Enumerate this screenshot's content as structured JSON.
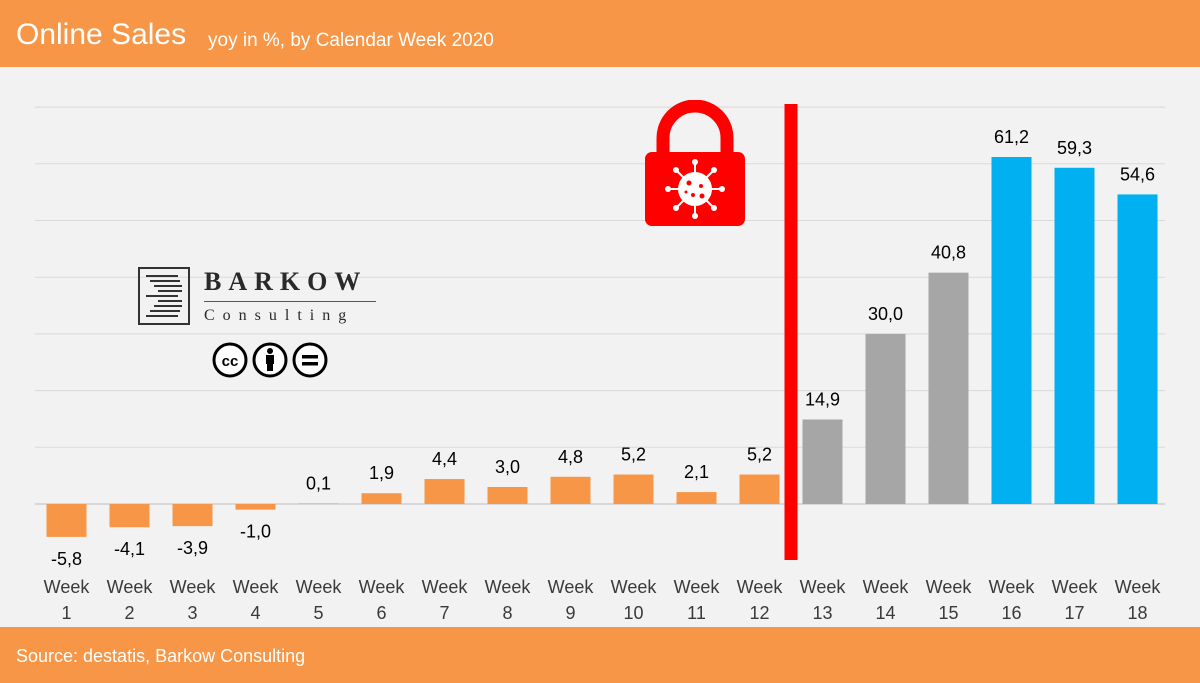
{
  "header": {
    "title": "Online Sales",
    "subtitle": "yoy in %, by Calendar Week 2020"
  },
  "footer": {
    "source": "Source: destatis, Barkow Consulting"
  },
  "logo": {
    "name": "BARKOW",
    "sub": "Consulting",
    "license_icon": "cc-by-nd-icon"
  },
  "colors": {
    "header_bg": "#f79646",
    "bar_orange": "#f79646",
    "bar_grey": "#a6a6a6",
    "bar_blue": "#00b0f0",
    "lockdown_line": "#ff0000",
    "lock_icon": "#ff0000"
  },
  "chart_data": {
    "type": "bar",
    "title": "Online Sales",
    "subtitle": "yoy in %, by Calendar Week 2020",
    "categories": [
      "Week 1",
      "Week 2",
      "Week 3",
      "Week 4",
      "Week 5",
      "Week 6",
      "Week 7",
      "Week 8",
      "Week 9",
      "Week 10",
      "Week 11",
      "Week 12",
      "Week 13",
      "Week 14",
      "Week 15",
      "Week 16",
      "Week 17",
      "Week 18"
    ],
    "values": [
      -5.8,
      -4.1,
      -3.9,
      -1.0,
      0.1,
      1.9,
      4.4,
      3.0,
      4.8,
      5.2,
      2.1,
      5.2,
      14.9,
      30.0,
      40.8,
      61.2,
      59.3,
      54.6
    ],
    "value_labels": [
      "-5,8",
      "-4,1",
      "-3,9",
      "-1,0",
      "0,1",
      "1,9",
      "4,4",
      "3,0",
      "4,8",
      "5,2",
      "2,1",
      "5,2",
      "14,9",
      "30,0",
      "40,8",
      "61,2",
      "59,3",
      "54,6"
    ],
    "bar_colors": [
      "#f79646",
      "#f79646",
      "#f79646",
      "#f79646",
      "#f79646",
      "#f79646",
      "#f79646",
      "#f79646",
      "#f79646",
      "#f79646",
      "#f79646",
      "#f79646",
      "#a6a6a6",
      "#a6a6a6",
      "#a6a6a6",
      "#00b0f0",
      "#00b0f0",
      "#00b0f0"
    ],
    "ylim": [
      -10,
      70
    ],
    "grid": true,
    "annotation": {
      "type": "vertical-line",
      "between": [
        "Week 12",
        "Week 13"
      ],
      "icon": "corona-lock-icon",
      "color": "#ff0000"
    }
  }
}
